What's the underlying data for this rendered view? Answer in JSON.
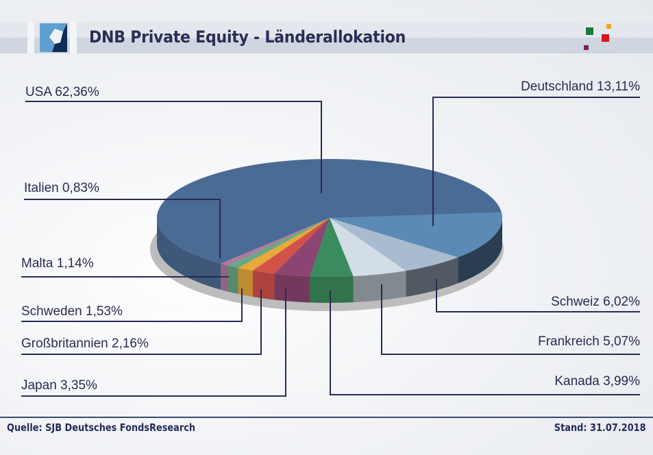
{
  "header": {
    "title": "DNB Private Equity - Länderallokation",
    "logo": "dnb-logo",
    "decoration": "colored-squares"
  },
  "footer": {
    "source": "Quelle: SJB Deutsches FondsResearch",
    "date": "Stand: 31.07.2018"
  },
  "colors": {
    "title": "#2b2d55",
    "leader_line": "#2a2a50",
    "square_green": "#1b7a3c",
    "square_orange": "#f2a51b",
    "square_red": "#d7151f",
    "square_purple": "#7d1f62"
  },
  "chart_data": {
    "type": "pie",
    "title": "DNB Private Equity - Länderallokation",
    "unit": "%",
    "slices": [
      {
        "name": "USA",
        "value": 62.36,
        "label": "USA 62,36%",
        "color": "#4a6b94"
      },
      {
        "name": "Deutschland",
        "value": 13.11,
        "label": "Deutschland 13,11%",
        "color": "#5a8ab5"
      },
      {
        "name": "Schweiz",
        "value": 6.02,
        "label": "Schweiz 6,02%",
        "color": "#a9bccf"
      },
      {
        "name": "Frankreich",
        "value": 5.07,
        "label": "Frankreich 5,07%",
        "color": "#d2dde6"
      },
      {
        "name": "Kanada",
        "value": 3.99,
        "label": "Kanada 3,99%",
        "color": "#3a8c5e"
      },
      {
        "name": "Japan",
        "value": 3.35,
        "label": "Japan 3,35%",
        "color": "#8c4572"
      },
      {
        "name": "Großbritannien",
        "value": 2.16,
        "label": "Großbritannien 2,16%",
        "color": "#d2524a"
      },
      {
        "name": "Schweden",
        "value": 1.53,
        "label": "Schweden 1,53%",
        "color": "#e6a93a"
      },
      {
        "name": "Malta",
        "value": 1.14,
        "label": "Malta 1,14%",
        "color": "#6aa884"
      },
      {
        "name": "Italien",
        "value": 0.83,
        "label": "Italien 0,83%",
        "color": "#b07aa0"
      }
    ],
    "legend": "leader-line labels"
  }
}
